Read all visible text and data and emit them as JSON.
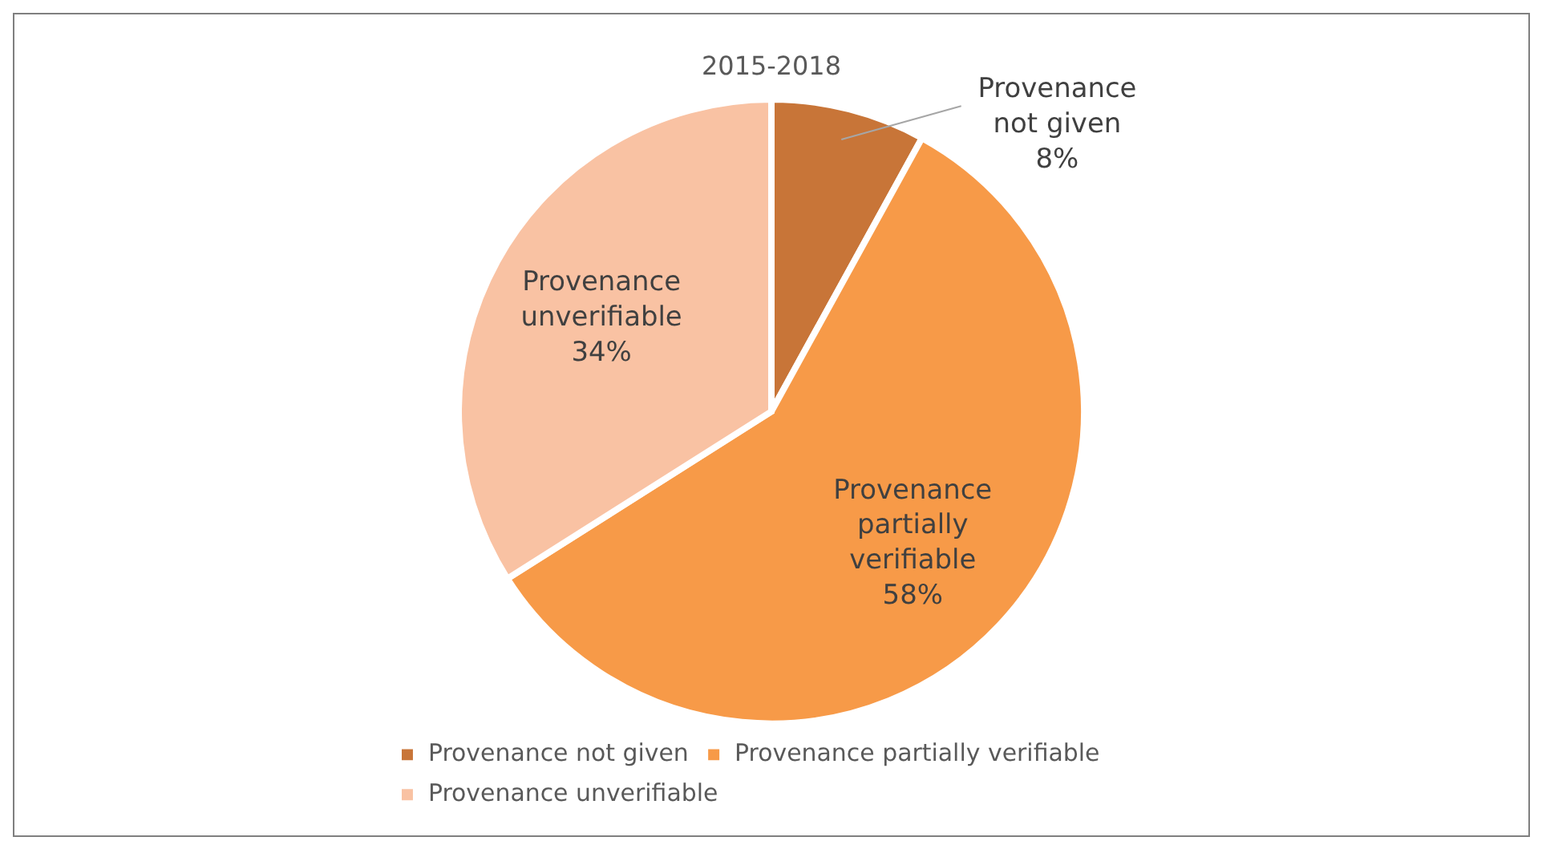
{
  "chart_data": {
    "type": "pie",
    "title": "2015-2018",
    "categories": [
      "Provenance not given",
      "Provenance partially verifiable",
      "Provenance unverifiable"
    ],
    "values": [
      8,
      58,
      34
    ],
    "colors": [
      "#c87538",
      "#f79a48",
      "#f9c2a3"
    ],
    "value_labels": [
      "8%",
      "58%",
      "34%"
    ],
    "legend": "bottom"
  }
}
